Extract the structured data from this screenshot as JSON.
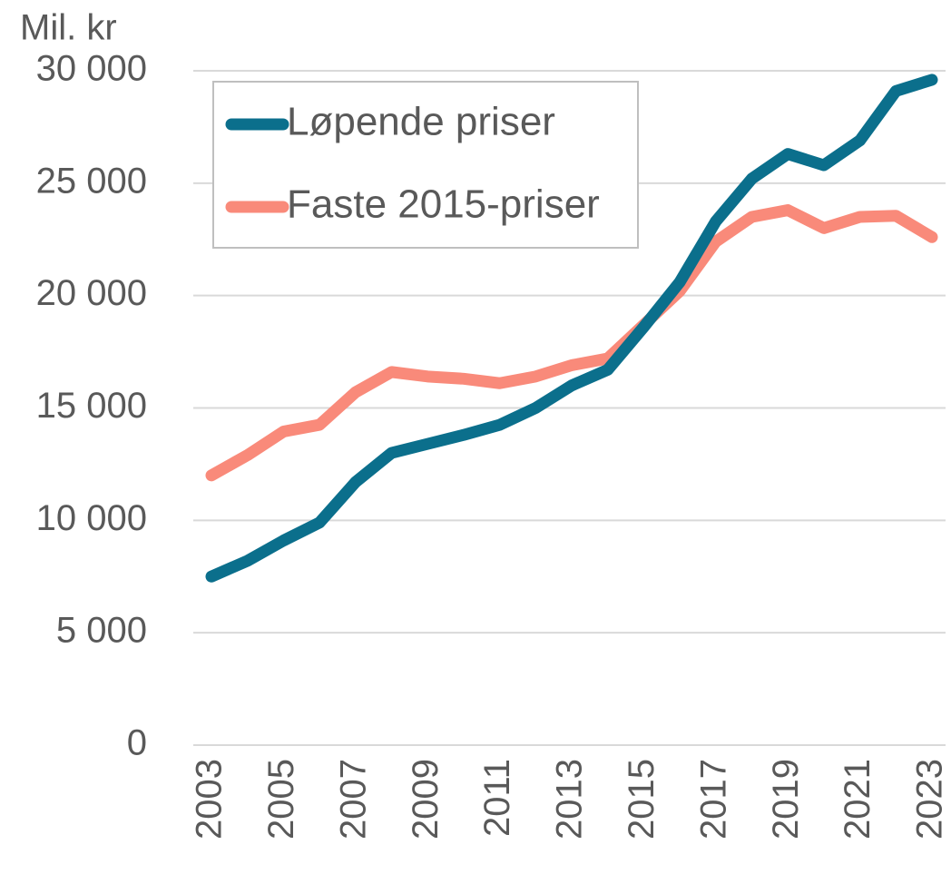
{
  "chart_data": {
    "type": "line",
    "y_label": "Mil. kr",
    "x": [
      2003,
      2004,
      2005,
      2006,
      2007,
      2008,
      2009,
      2010,
      2011,
      2012,
      2013,
      2014,
      2015,
      2016,
      2017,
      2018,
      2019,
      2020,
      2021,
      2022,
      2023
    ],
    "xlim": [
      2003,
      2023
    ],
    "xticks": [
      2003,
      2005,
      2007,
      2009,
      2011,
      2013,
      2015,
      2017,
      2019,
      2021,
      2023
    ],
    "ylim": [
      0,
      30000
    ],
    "yticks": [
      0,
      {
        "value": 5000,
        "label": "5 000"
      },
      {
        "value": 10000,
        "label": "10 000"
      },
      {
        "value": 15000,
        "label": "15 000"
      },
      {
        "value": 20000,
        "label": "20 000"
      },
      {
        "value": 25000,
        "label": "25 000"
      },
      {
        "value": 30000,
        "label": "30 000"
      }
    ],
    "grid": true,
    "legend": "top-left",
    "series": [
      {
        "name": "Løpende priser",
        "color": "#0b6f8c",
        "values": [
          7500,
          8200,
          9100,
          9900,
          11700,
          13000,
          13400,
          13800,
          14250,
          15000,
          16000,
          16700,
          18600,
          20600,
          23300,
          25200,
          26300,
          25800,
          26900,
          29100,
          29600
        ]
      },
      {
        "name": "Faste 2015-priser",
        "color": "#f98a7a",
        "values": [
          12000,
          12900,
          13950,
          14250,
          15700,
          16600,
          16400,
          16300,
          16100,
          16400,
          16900,
          17200,
          18700,
          20200,
          22400,
          23500,
          23800,
          23000,
          23500,
          23550,
          22600
        ]
      }
    ]
  }
}
